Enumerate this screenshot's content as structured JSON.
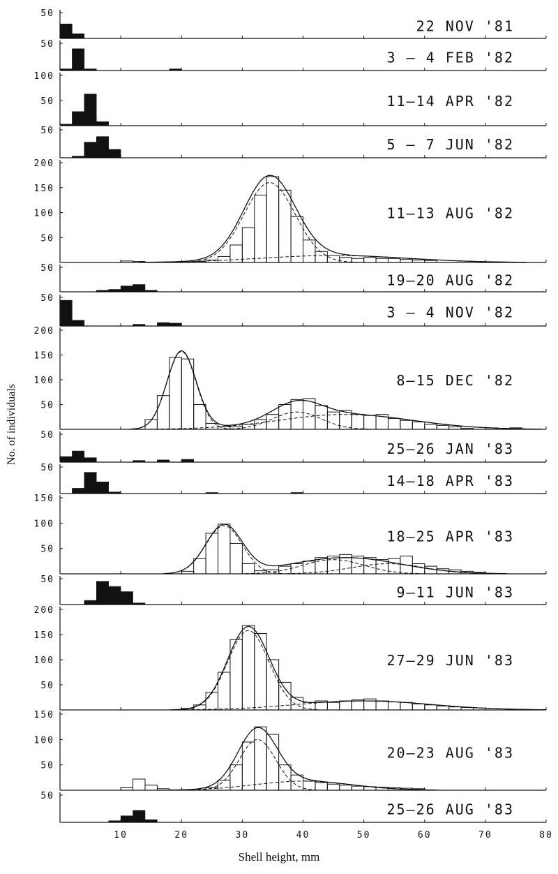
{
  "chart_data": {
    "type": "bar",
    "xlabel": "Shell height, mm",
    "ylabel": "No. of individuals",
    "xlim": [
      0,
      80
    ],
    "x_ticks": [
      "10",
      "20",
      "30",
      "40",
      "50",
      "60",
      "70",
      "80"
    ],
    "bin_width_mm": 2,
    "panels": [
      {
        "label": "22 NOV '81",
        "ylim": [
          0,
          50
        ],
        "y_ticks": [
          "50"
        ],
        "style": "filled",
        "bins": [
          {
            "x": 1,
            "y": 28
          },
          {
            "x": 3,
            "y": 9
          }
        ]
      },
      {
        "label": "3 — 4 FEB '82",
        "ylim": [
          0,
          50
        ],
        "y_ticks": [
          "50"
        ],
        "style": "filled",
        "bins": [
          {
            "x": 1,
            "y": 3
          },
          {
            "x": 3,
            "y": 40
          },
          {
            "x": 5,
            "y": 3
          },
          {
            "x": 19,
            "y": 3
          }
        ]
      },
      {
        "label": "11—14 APR '82",
        "ylim": [
          0,
          100
        ],
        "y_ticks": [
          "50",
          "100"
        ],
        "style": "filled",
        "bins": [
          {
            "x": 1,
            "y": 3
          },
          {
            "x": 3,
            "y": 28
          },
          {
            "x": 5,
            "y": 63
          },
          {
            "x": 7,
            "y": 8
          }
        ]
      },
      {
        "label": "5 — 7 JUN '82",
        "ylim": [
          0,
          50
        ],
        "y_ticks": [
          "50"
        ],
        "style": "filled",
        "bins": [
          {
            "x": 3,
            "y": 3
          },
          {
            "x": 5,
            "y": 28
          },
          {
            "x": 7,
            "y": 38
          },
          {
            "x": 9,
            "y": 15
          }
        ]
      },
      {
        "label": "11—13 AUG '82",
        "ylim": [
          0,
          200
        ],
        "y_ticks": [
          "50",
          "100",
          "150",
          "200"
        ],
        "style": "outline",
        "bins": [
          {
            "x": 11,
            "y": 3
          },
          {
            "x": 13,
            "y": 2
          },
          {
            "x": 23,
            "y": 2
          },
          {
            "x": 25,
            "y": 5
          },
          {
            "x": 27,
            "y": 12
          },
          {
            "x": 29,
            "y": 35
          },
          {
            "x": 31,
            "y": 70
          },
          {
            "x": 33,
            "y": 135
          },
          {
            "x": 35,
            "y": 172
          },
          {
            "x": 37,
            "y": 145
          },
          {
            "x": 39,
            "y": 92
          },
          {
            "x": 41,
            "y": 45
          },
          {
            "x": 43,
            "y": 22
          },
          {
            "x": 45,
            "y": 14
          },
          {
            "x": 47,
            "y": 10
          },
          {
            "x": 49,
            "y": 8
          },
          {
            "x": 51,
            "y": 10
          },
          {
            "x": 53,
            "y": 8
          },
          {
            "x": 55,
            "y": 8
          },
          {
            "x": 57,
            "y": 6
          },
          {
            "x": 59,
            "y": 5
          },
          {
            "x": 61,
            "y": 4
          }
        ],
        "fit_curves": [
          {
            "style": "solid",
            "peaks": [
              {
                "mu": 34.5,
                "sigma": 4.2,
                "amp": 165
              },
              {
                "mu": 45,
                "sigma": 12,
                "amp": 14
              }
            ]
          },
          {
            "style": "dashed",
            "peaks": [
              {
                "mu": 34.5,
                "sigma": 4.2,
                "amp": 160
              }
            ]
          },
          {
            "style": "dashed",
            "peaks": [
              {
                "mu": 45,
                "sigma": 12,
                "amp": 14
              }
            ]
          }
        ]
      },
      {
        "label": "19—20 AUG '82",
        "ylim": [
          0,
          50
        ],
        "y_ticks": [
          "50"
        ],
        "style": "filled",
        "bins": [
          {
            "x": 7,
            "y": 3
          },
          {
            "x": 9,
            "y": 5
          },
          {
            "x": 11,
            "y": 12
          },
          {
            "x": 13,
            "y": 15
          },
          {
            "x": 15,
            "y": 3
          }
        ]
      },
      {
        "label": "3 — 4 NOV '82",
        "ylim": [
          0,
          50
        ],
        "y_ticks": [
          "50"
        ],
        "style": "filled",
        "bins": [
          {
            "x": 1,
            "y": 45
          },
          {
            "x": 3,
            "y": 10
          },
          {
            "x": 13,
            "y": 3
          },
          {
            "x": 17,
            "y": 6
          },
          {
            "x": 19,
            "y": 5
          }
        ]
      },
      {
        "label": "8—15 DEC '82",
        "ylim": [
          0,
          200
        ],
        "y_ticks": [
          "50",
          "100",
          "150",
          "200"
        ],
        "style": "outline",
        "bins": [
          {
            "x": 15,
            "y": 20
          },
          {
            "x": 17,
            "y": 68
          },
          {
            "x": 19,
            "y": 145
          },
          {
            "x": 21,
            "y": 142
          },
          {
            "x": 23,
            "y": 50
          },
          {
            "x": 25,
            "y": 12
          },
          {
            "x": 27,
            "y": 5
          },
          {
            "x": 29,
            "y": 5
          },
          {
            "x": 31,
            "y": 10
          },
          {
            "x": 33,
            "y": 20
          },
          {
            "x": 35,
            "y": 30
          },
          {
            "x": 37,
            "y": 50
          },
          {
            "x": 39,
            "y": 60
          },
          {
            "x": 41,
            "y": 62
          },
          {
            "x": 43,
            "y": 48
          },
          {
            "x": 45,
            "y": 35
          },
          {
            "x": 47,
            "y": 38
          },
          {
            "x": 49,
            "y": 30
          },
          {
            "x": 51,
            "y": 28
          },
          {
            "x": 53,
            "y": 30
          },
          {
            "x": 55,
            "y": 22
          },
          {
            "x": 57,
            "y": 18
          },
          {
            "x": 59,
            "y": 15
          },
          {
            "x": 61,
            "y": 10
          },
          {
            "x": 63,
            "y": 8
          },
          {
            "x": 65,
            "y": 5
          },
          {
            "x": 67,
            "y": 2
          },
          {
            "x": 71,
            "y": 3
          },
          {
            "x": 75,
            "y": 3
          }
        ],
        "fit_curves": [
          {
            "style": "solid",
            "peaks": [
              {
                "mu": 20,
                "sigma": 2.4,
                "amp": 157
              },
              {
                "mu": 39,
                "sigma": 4,
                "amp": 35
              },
              {
                "mu": 47,
                "sigma": 11,
                "amp": 30
              }
            ]
          },
          {
            "style": "dashed",
            "peaks": [
              {
                "mu": 20,
                "sigma": 2.4,
                "amp": 157
              }
            ]
          },
          {
            "style": "dashed",
            "peaks": [
              {
                "mu": 39,
                "sigma": 4,
                "amp": 35
              }
            ]
          },
          {
            "style": "dashed",
            "peaks": [
              {
                "mu": 47,
                "sigma": 11,
                "amp": 30
              }
            ]
          }
        ]
      },
      {
        "label": "25—26 JAN '83",
        "ylim": [
          0,
          50
        ],
        "y_ticks": [
          "50"
        ],
        "style": "filled",
        "bins": [
          {
            "x": 1,
            "y": 10
          },
          {
            "x": 3,
            "y": 20
          },
          {
            "x": 5,
            "y": 8
          },
          {
            "x": 13,
            "y": 3
          },
          {
            "x": 17,
            "y": 4
          },
          {
            "x": 21,
            "y": 5
          }
        ]
      },
      {
        "label": "14—18 APR '83",
        "ylim": [
          0,
          50
        ],
        "y_ticks": [
          "50"
        ],
        "style": "filled",
        "bins": [
          {
            "x": 3,
            "y": 10
          },
          {
            "x": 5,
            "y": 40
          },
          {
            "x": 7,
            "y": 22
          },
          {
            "x": 9,
            "y": 3
          },
          {
            "x": 25,
            "y": 2
          },
          {
            "x": 39,
            "y": 2
          }
        ]
      },
      {
        "label": "18—25 APR '83",
        "ylim": [
          0,
          150
        ],
        "y_ticks": [
          "50",
          "100",
          "150"
        ],
        "style": "outline",
        "bins": [
          {
            "x": 21,
            "y": 5
          },
          {
            "x": 23,
            "y": 30
          },
          {
            "x": 25,
            "y": 80
          },
          {
            "x": 27,
            "y": 98
          },
          {
            "x": 29,
            "y": 60
          },
          {
            "x": 31,
            "y": 20
          },
          {
            "x": 33,
            "y": 6
          },
          {
            "x": 35,
            "y": 8
          },
          {
            "x": 37,
            "y": 15
          },
          {
            "x": 39,
            "y": 20
          },
          {
            "x": 41,
            "y": 25
          },
          {
            "x": 43,
            "y": 32
          },
          {
            "x": 45,
            "y": 35
          },
          {
            "x": 47,
            "y": 38
          },
          {
            "x": 49,
            "y": 35
          },
          {
            "x": 51,
            "y": 32
          },
          {
            "x": 53,
            "y": 28
          },
          {
            "x": 55,
            "y": 30
          },
          {
            "x": 57,
            "y": 35
          },
          {
            "x": 59,
            "y": 20
          },
          {
            "x": 61,
            "y": 15
          },
          {
            "x": 63,
            "y": 10
          },
          {
            "x": 65,
            "y": 8
          },
          {
            "x": 67,
            "y": 5
          },
          {
            "x": 69,
            "y": 3
          }
        ],
        "fit_curves": [
          {
            "style": "solid",
            "peaks": [
              {
                "mu": 27,
                "sigma": 3,
                "amp": 95
              },
              {
                "mu": 47,
                "sigma": 9,
                "amp": 32
              }
            ]
          },
          {
            "style": "dashed",
            "peaks": [
              {
                "mu": 27,
                "sigma": 3,
                "amp": 95
              }
            ]
          },
          {
            "style": "dashed",
            "peaks": [
              {
                "mu": 45,
                "sigma": 5,
                "amp": 28
              }
            ]
          },
          {
            "style": "dashed",
            "peaks": [
              {
                "mu": 54,
                "sigma": 6,
                "amp": 20
              }
            ]
          }
        ]
      },
      {
        "label": "9—11 JUN '83",
        "ylim": [
          0,
          50
        ],
        "y_ticks": [
          "50"
        ],
        "style": "filled",
        "bins": [
          {
            "x": 5,
            "y": 8
          },
          {
            "x": 7,
            "y": 45
          },
          {
            "x": 9,
            "y": 35
          },
          {
            "x": 11,
            "y": 25
          },
          {
            "x": 13,
            "y": 3
          }
        ]
      },
      {
        "label": "27—29 JUN '83",
        "ylim": [
          0,
          200
        ],
        "y_ticks": [
          "50",
          "100",
          "150",
          "200"
        ],
        "style": "outline",
        "bins": [
          {
            "x": 21,
            "y": 3
          },
          {
            "x": 23,
            "y": 10
          },
          {
            "x": 25,
            "y": 35
          },
          {
            "x": 27,
            "y": 75
          },
          {
            "x": 29,
            "y": 140
          },
          {
            "x": 31,
            "y": 168
          },
          {
            "x": 33,
            "y": 152
          },
          {
            "x": 35,
            "y": 100
          },
          {
            "x": 37,
            "y": 55
          },
          {
            "x": 39,
            "y": 25
          },
          {
            "x": 41,
            "y": 15
          },
          {
            "x": 43,
            "y": 18
          },
          {
            "x": 45,
            "y": 15
          },
          {
            "x": 47,
            "y": 18
          },
          {
            "x": 49,
            "y": 20
          },
          {
            "x": 51,
            "y": 22
          },
          {
            "x": 53,
            "y": 18
          },
          {
            "x": 55,
            "y": 16
          },
          {
            "x": 57,
            "y": 15
          },
          {
            "x": 59,
            "y": 12
          },
          {
            "x": 61,
            "y": 10
          },
          {
            "x": 63,
            "y": 8
          },
          {
            "x": 65,
            "y": 6
          },
          {
            "x": 67,
            "y": 5
          }
        ],
        "fit_curves": [
          {
            "style": "solid",
            "peaks": [
              {
                "mu": 31,
                "sigma": 3.4,
                "amp": 162
              },
              {
                "mu": 50,
                "sigma": 11,
                "amp": 18
              }
            ]
          },
          {
            "style": "dashed",
            "peaks": [
              {
                "mu": 31,
                "sigma": 3.4,
                "amp": 158
              }
            ]
          },
          {
            "style": "dashed",
            "peaks": [
              {
                "mu": 50,
                "sigma": 11,
                "amp": 18
              }
            ]
          }
        ]
      },
      {
        "label": "20—23 AUG '83",
        "ylim": [
          0,
          150
        ],
        "y_ticks": [
          "50",
          "100",
          "150"
        ],
        "style": "outline",
        "bins": [
          {
            "x": 11,
            "y": 5
          },
          {
            "x": 13,
            "y": 22
          },
          {
            "x": 15,
            "y": 10
          },
          {
            "x": 17,
            "y": 3
          },
          {
            "x": 25,
            "y": 5
          },
          {
            "x": 27,
            "y": 20
          },
          {
            "x": 29,
            "y": 50
          },
          {
            "x": 31,
            "y": 95
          },
          {
            "x": 33,
            "y": 125
          },
          {
            "x": 35,
            "y": 110
          },
          {
            "x": 37,
            "y": 50
          },
          {
            "x": 39,
            "y": 30
          },
          {
            "x": 41,
            "y": 18
          },
          {
            "x": 43,
            "y": 15
          },
          {
            "x": 45,
            "y": 12
          },
          {
            "x": 47,
            "y": 10
          },
          {
            "x": 49,
            "y": 8
          },
          {
            "x": 51,
            "y": 7
          },
          {
            "x": 53,
            "y": 6
          },
          {
            "x": 55,
            "y": 5
          },
          {
            "x": 57,
            "y": 4
          },
          {
            "x": 59,
            "y": 3
          }
        ],
        "fit_curves": [
          {
            "style": "solid",
            "peaks": [
              {
                "mu": 32.5,
                "sigma": 3.2,
                "amp": 112
              },
              {
                "mu": 40,
                "sigma": 8,
                "amp": 18
              }
            ]
          },
          {
            "style": "dashed",
            "peaks": [
              {
                "mu": 32.5,
                "sigma": 3,
                "amp": 100
              }
            ]
          },
          {
            "style": "dashed",
            "peaks": [
              {
                "mu": 40,
                "sigma": 8,
                "amp": 18
              }
            ]
          }
        ]
      },
      {
        "label": "25—26 AUG '83",
        "ylim": [
          0,
          50
        ],
        "y_ticks": [
          "50"
        ],
        "style": "filled",
        "bins": [
          {
            "x": 9,
            "y": 3
          },
          {
            "x": 11,
            "y": 12
          },
          {
            "x": 13,
            "y": 22
          },
          {
            "x": 15,
            "y": 5
          }
        ]
      }
    ]
  }
}
